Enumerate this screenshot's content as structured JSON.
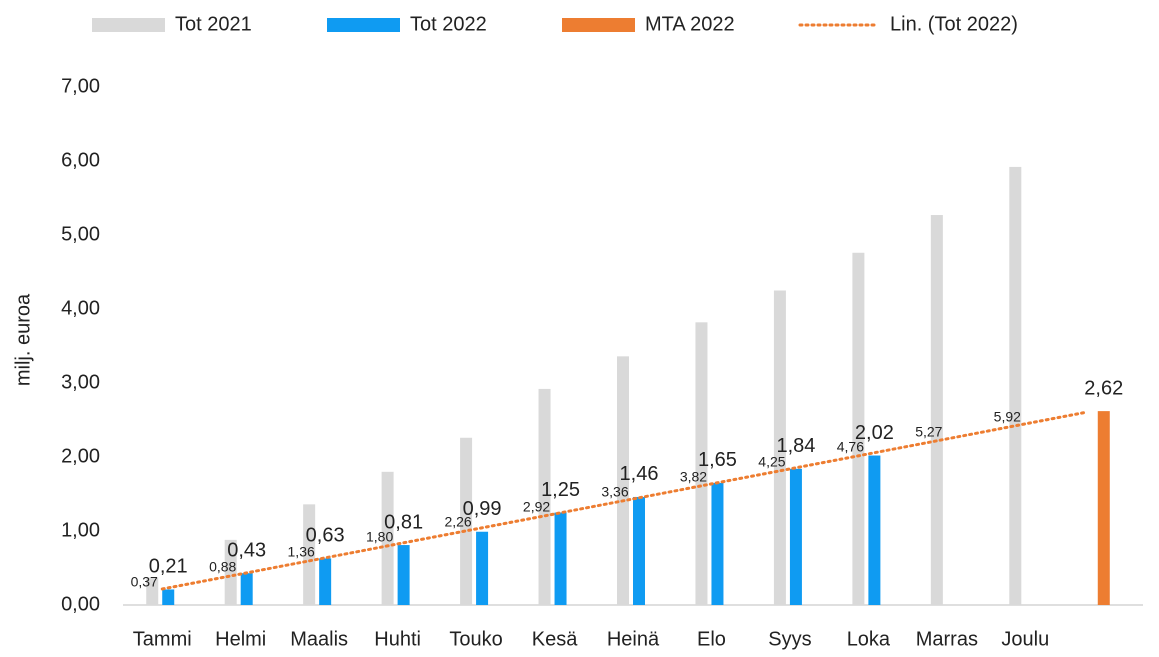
{
  "chart_data": {
    "type": "bar",
    "y_label": "milj. euroa",
    "categories": [
      "Tammi",
      "Helmi",
      "Maalis",
      "Huhti",
      "Touko",
      "Kesä",
      "Heinä",
      "Elo",
      "Syys",
      "Loka",
      "Marras",
      "Joulu",
      null
    ],
    "series": [
      {
        "name": "Tot 2021",
        "color": "#d9d9d9",
        "values": [
          0.37,
          0.88,
          1.36,
          1.8,
          2.26,
          2.92,
          3.36,
          3.82,
          4.25,
          4.76,
          5.27,
          5.92,
          null
        ],
        "value_labels": [
          "0,37",
          "0,88",
          "1,36",
          "1,80",
          "2,26",
          "2,92",
          "3,36",
          "3,82",
          "4,25",
          "4,76",
          "5,27",
          "5,92",
          null
        ]
      },
      {
        "name": "Tot 2022",
        "color": "#0f9bf2",
        "values": [
          0.21,
          0.43,
          0.63,
          0.81,
          0.99,
          1.25,
          1.46,
          1.65,
          1.84,
          2.02,
          null,
          null,
          null
        ],
        "value_labels": [
          "0,21",
          "0,43",
          "0,63",
          "0,81",
          "0,99",
          "1,25",
          "1,46",
          "1,65",
          "1,84",
          "2,02",
          null,
          null,
          null
        ],
        "trendline": {
          "name": "Lin. (Tot 2022)",
          "color": "#ed7d31"
        }
      },
      {
        "name": "MTA 2022",
        "color": "#ed7d31",
        "values": [
          null,
          null,
          null,
          null,
          null,
          null,
          null,
          null,
          null,
          null,
          null,
          null,
          2.62
        ],
        "value_labels": [
          null,
          null,
          null,
          null,
          null,
          null,
          null,
          null,
          null,
          null,
          null,
          null,
          "2,62"
        ]
      }
    ],
    "ylim": [
      0,
      7
    ],
    "yticks": [
      {
        "value": 0,
        "label": "0,00"
      },
      {
        "value": 1,
        "label": "1,00"
      },
      {
        "value": 2,
        "label": "2,00"
      },
      {
        "value": 3,
        "label": "3,00"
      },
      {
        "value": 4,
        "label": "4,00"
      },
      {
        "value": 5,
        "label": "5,00"
      },
      {
        "value": 6,
        "label": "6,00"
      },
      {
        "value": 7,
        "label": "7,00"
      }
    ],
    "grid": false,
    "legend": "top"
  }
}
